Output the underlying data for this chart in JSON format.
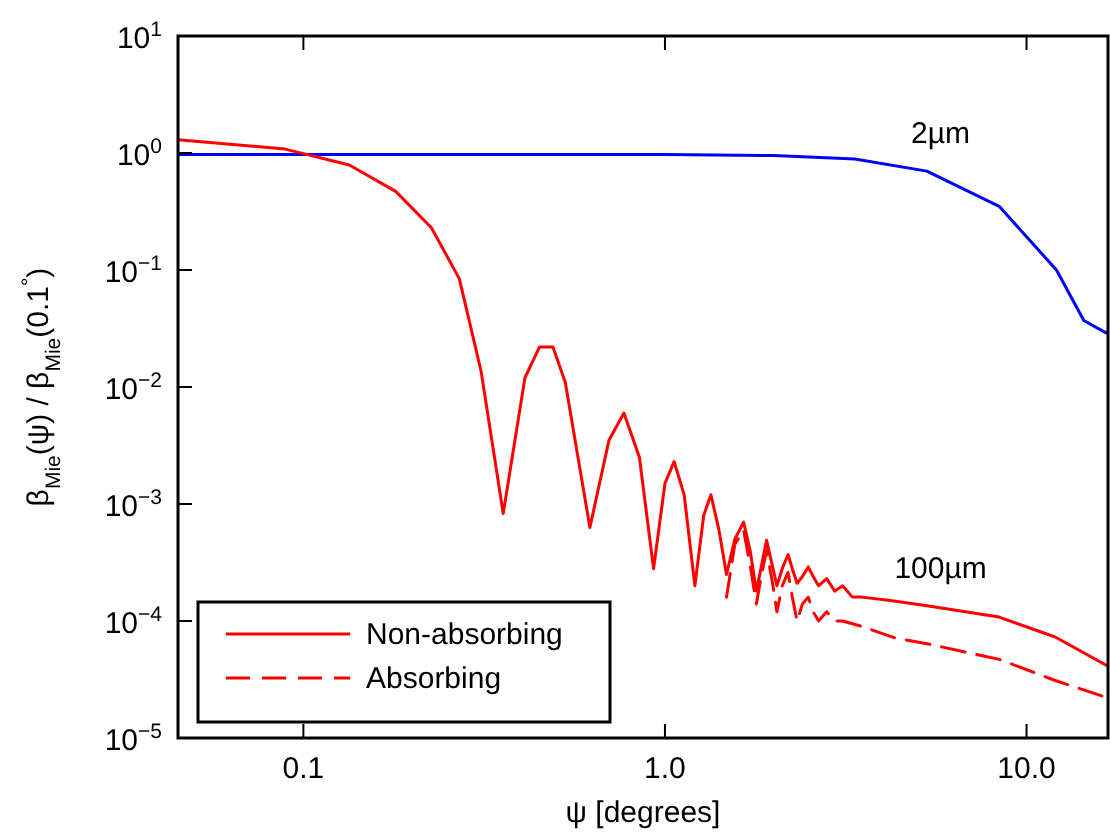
{
  "chart_data": {
    "type": "line",
    "xlabel": "ψ [degrees]",
    "ylabel": "β$_{Mie}$(ψ) / β$_{Mie}$(0.1$^{°}$)",
    "log": "xy",
    "xlim": [
      0.045,
      16.8
    ],
    "ylim": [
      1e-05,
      10
    ],
    "xticks": [
      {
        "value": 0.1,
        "label": "0.1"
      },
      {
        "value": 1,
        "label": "1.0"
      },
      {
        "value": 10,
        "label": "10.0"
      }
    ],
    "yticks": [
      {
        "value": 1e-05,
        "label": "10$^{−5}$"
      },
      {
        "value": 0.0001,
        "label": "10$^{−4}$"
      },
      {
        "value": 0.001,
        "label": "10$^{−3}$"
      },
      {
        "value": 0.01,
        "label": "10$^{−2}$"
      },
      {
        "value": 0.1,
        "label": "10$^{−1}$"
      },
      {
        "value": 1,
        "label": "10$^{0}$"
      },
      {
        "value": 10,
        "label": "10$^{1}$"
      }
    ],
    "legend": "bottom left",
    "grid": false,
    "series": [
      {
        "color": "#0000ff",
        "line_style": "solid",
        "x": [
          0.045,
          0.1,
          0.5,
          1,
          2,
          3.35,
          5.3,
          8.4,
          12.1,
          14.4,
          16.6,
          16.8
        ],
        "values": [
          0.97,
          0.97,
          0.97,
          0.97,
          0.95,
          0.89,
          0.7,
          0.35,
          0.1,
          0.037,
          0.029,
          0.03
        ]
      },
      {
        "name": "Non-absorbing",
        "color": "#ff0000",
        "line_style": "solid",
        "x": [
          0.045,
          0.089,
          0.134,
          0.18,
          0.226,
          0.27,
          0.31,
          0.357,
          0.41,
          0.45,
          0.49,
          0.53,
          0.62,
          0.7,
          0.77,
          0.85,
          0.93,
          1.0,
          1.06,
          1.13,
          1.21,
          1.28,
          1.34,
          1.41,
          1.48,
          1.56,
          1.65,
          1.72,
          1.79,
          1.85,
          1.91,
          1.98,
          2.04,
          2.11,
          2.19,
          2.25,
          2.32,
          2.4,
          2.49,
          2.57,
          2.66,
          2.8,
          2.95,
          3.1,
          3.3,
          3.5,
          4.2,
          5.3,
          8.4,
          12,
          16.8
        ],
        "values": [
          1.3,
          1.08,
          0.79,
          0.47,
          0.23,
          0.084,
          0.0137,
          0.00083,
          0.012,
          0.022,
          0.022,
          0.011,
          0.00063,
          0.0035,
          0.006,
          0.0025,
          0.00028,
          0.0015,
          0.0023,
          0.0012,
          0.0002,
          0.0008,
          0.0012,
          0.0006,
          0.00025,
          0.0005,
          0.0007,
          0.0004,
          0.00018,
          0.0003,
          0.00049,
          0.0003,
          0.0002,
          0.00028,
          0.00037,
          0.00028,
          0.00021,
          0.00024,
          0.00029,
          0.00024,
          0.0002,
          0.00023,
          0.00018,
          0.0002,
          0.00016,
          0.00016,
          0.00015,
          0.000135,
          0.000108,
          7.3e-05,
          4.1e-05
        ]
      },
      {
        "name": "Absorbing",
        "color": "#ff0000",
        "line_style": "dashed",
        "x": [
          1.48,
          1.56,
          1.65,
          1.72,
          1.79,
          1.85,
          1.91,
          1.98,
          2.04,
          2.11,
          2.19,
          2.25,
          2.32,
          2.4,
          2.49,
          2.57,
          2.66,
          2.8,
          2.95,
          3.1,
          3.5,
          4.3,
          5.3,
          8.4,
          12,
          16.8
        ],
        "values": [
          0.00016,
          0.00045,
          0.0006,
          0.0003,
          0.00014,
          0.00025,
          0.0004,
          0.00022,
          0.00012,
          0.0002,
          0.00026,
          0.00016,
          0.0001,
          0.00014,
          0.00016,
          0.00012,
          0.0001,
          0.00012,
          0.0001,
          0.0001,
          9e-05,
          7.2e-05,
          6.4e-05,
          4.7e-05,
          3.1e-05,
          2.2e-05
        ]
      }
    ],
    "annotations": [
      "2µm",
      "100µm"
    ]
  }
}
